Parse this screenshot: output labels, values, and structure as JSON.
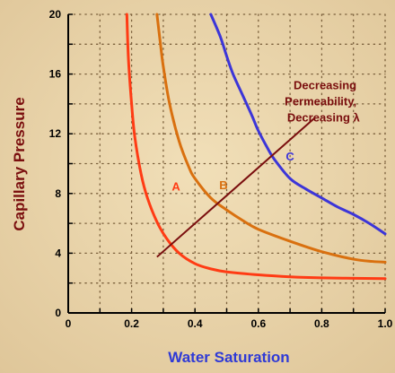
{
  "colors": {
    "background": "#ead7ad",
    "background_dark": "#dcc496",
    "axis": "#000000",
    "grid_dot": "#7a5f3b",
    "ylabel": "#7a0e0e",
    "xlabel": "#2f3ad6",
    "annotation": "#7a0e0e",
    "arrow": "#7a0e0e"
  },
  "chart_data": {
    "type": "line",
    "title": "",
    "xlabel": "Water Saturation",
    "ylabel": "Capillary Pressure",
    "xlim": [
      0,
      1.0
    ],
    "ylim": [
      0,
      20
    ],
    "x_ticks": [
      {
        "value": 0,
        "label": "0"
      },
      {
        "value": 0.2,
        "label": "0.2"
      },
      {
        "value": 0.4,
        "label": "0.4"
      },
      {
        "value": 0.6,
        "label": "0.6"
      },
      {
        "value": 0.8,
        "label": "0.8"
      },
      {
        "value": 1.0,
        "label": "1.0"
      }
    ],
    "y_ticks": [
      {
        "value": 0,
        "label": "0"
      },
      {
        "value": 4,
        "label": "4"
      },
      {
        "value": 8,
        "label": "8"
      },
      {
        "value": 12,
        "label": "12"
      },
      {
        "value": 16,
        "label": "16"
      },
      {
        "value": 20,
        "label": "20"
      }
    ],
    "grid": "dotted",
    "series": [
      {
        "name": "A",
        "color": "#ff3b14",
        "x": [
          0.185,
          0.19,
          0.2,
          0.21,
          0.23,
          0.25,
          0.28,
          0.31,
          0.35,
          0.4,
          0.45,
          0.5,
          0.6,
          0.7,
          0.8,
          0.9,
          1.0
        ],
        "y": [
          20.0,
          17.0,
          14.0,
          11.8,
          9.3,
          7.7,
          6.1,
          5.0,
          4.0,
          3.3,
          2.95,
          2.75,
          2.55,
          2.42,
          2.35,
          2.32,
          2.3
        ]
      },
      {
        "name": "B",
        "color": "#d9700f",
        "x": [
          0.28,
          0.29,
          0.3,
          0.32,
          0.35,
          0.38,
          0.4,
          0.45,
          0.5,
          0.55,
          0.6,
          0.7,
          0.8,
          0.9,
          0.96,
          1.0
        ],
        "y": [
          20.0,
          18.2,
          16.5,
          14.0,
          11.5,
          9.8,
          9.0,
          7.7,
          6.9,
          6.2,
          5.6,
          4.8,
          4.1,
          3.6,
          3.45,
          3.4
        ]
      },
      {
        "name": "C",
        "color": "#3c35d8",
        "x": [
          0.45,
          0.48,
          0.5,
          0.52,
          0.55,
          0.58,
          0.6,
          0.63,
          0.65,
          0.7,
          0.75,
          0.8,
          0.85,
          0.9,
          0.95,
          1.0
        ],
        "y": [
          20.0,
          18.5,
          17.2,
          16.0,
          14.6,
          13.2,
          12.2,
          11.0,
          10.3,
          9.0,
          8.3,
          7.7,
          7.1,
          6.6,
          6.0,
          5.3
        ]
      }
    ],
    "curve_labels": [
      {
        "text": "A",
        "x": 0.34,
        "y": 8.2,
        "color": "#ff3b14"
      },
      {
        "text": "B",
        "x": 0.49,
        "y": 8.3,
        "color": "#d9700f"
      },
      {
        "text": "C",
        "x": 0.7,
        "y": 10.2,
        "color": "#3c35d8"
      }
    ],
    "annotation": {
      "lines": [
        "Decreasing",
        "Permeability,",
        "Decreasing λ"
      ],
      "x": 0.92,
      "y": 15.0,
      "arrow": {
        "from": [
          0.28,
          3.75
        ],
        "to": [
          0.78,
          13.1
        ]
      }
    }
  }
}
